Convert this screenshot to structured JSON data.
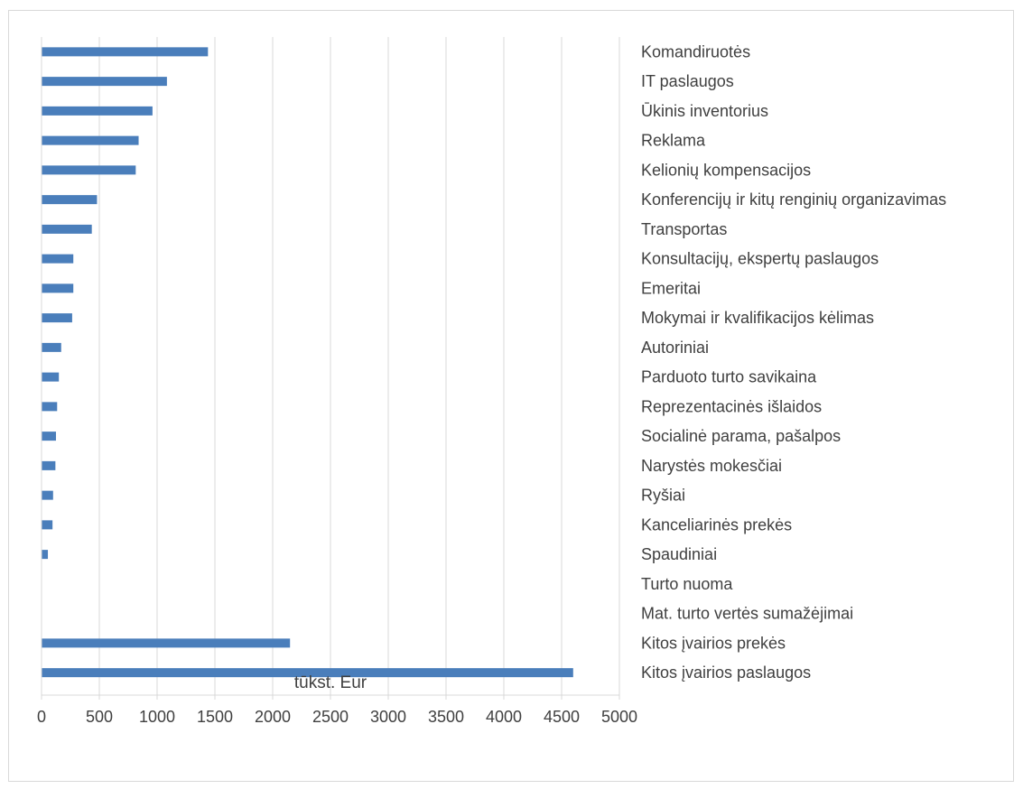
{
  "chart_data": {
    "type": "bar",
    "orientation": "horizontal",
    "categories": [
      "Komandiruotės",
      "IT paslaugos",
      "Ūkinis inventorius",
      "Reklama",
      "Kelionių kompensacijos",
      "Konferencijų ir kitų renginių organizavimas",
      "Transportas",
      "Konsultacijų, ekspertų paslaugos",
      "Emeritai",
      "Mokymai ir kvalifikacijos kėlimas",
      "Autoriniai",
      "Parduoto turto savikaina",
      "Reprezentacinės išlaidos",
      "Socialinė parama, pašalpos",
      "Narystės mokesčiai",
      "Ryšiai",
      "Kanceliarinės prekės",
      "Spaudiniai",
      "Turto nuoma",
      "Mat. turto vertės sumažėjimai",
      "Kitos įvairios prekės",
      "Kitos įvairios paslaugos"
    ],
    "values": [
      1440,
      1085,
      960,
      840,
      815,
      480,
      435,
      275,
      275,
      265,
      170,
      150,
      135,
      125,
      120,
      100,
      95,
      55,
      0,
      0,
      2150,
      4600
    ],
    "xlabel": "tūkst. Eur",
    "xlim": [
      0,
      5000
    ],
    "xticks": [
      "0",
      "500",
      "1000",
      "1500",
      "2000",
      "2500",
      "3000",
      "3500",
      "4000",
      "4500",
      "5000"
    ],
    "grid": "vertical",
    "bar_color": "#4a7ebb",
    "grid_color": "#d9d9d9",
    "text_color": "#404040"
  }
}
